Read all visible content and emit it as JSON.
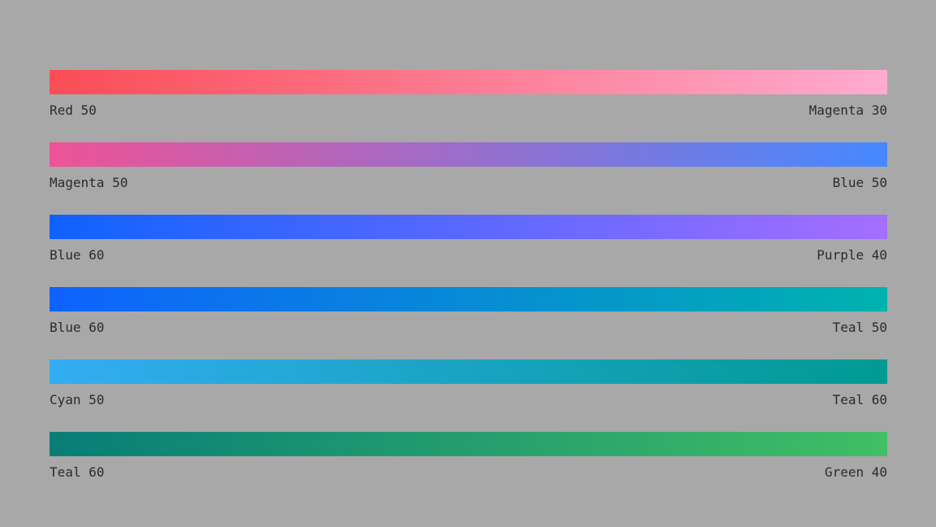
{
  "page": {
    "background_color": "#a8a8a8",
    "label_text_color": "#2b2b2b"
  },
  "gradients": [
    {
      "start_label": "Red 50",
      "end_label": "Magenta 30",
      "start_color": "#fa4d56",
      "end_color": "#ffabd0"
    },
    {
      "start_label": "Magenta 50",
      "end_label": "Blue 50",
      "start_color": "#ee5396",
      "end_color": "#4589ff"
    },
    {
      "start_label": "Blue 60",
      "end_label": "Purple 40",
      "start_color": "#0f62fe",
      "end_color": "#a56eff"
    },
    {
      "start_label": "Blue 60",
      "end_label": "Teal 50",
      "start_color": "#0f62fe",
      "end_color": "#00b3ae"
    },
    {
      "start_label": "Cyan 50",
      "end_label": "Teal 60",
      "start_color": "#33adf2",
      "end_color": "#009a92"
    },
    {
      "start_label": "Teal 60",
      "end_label": "Green 40",
      "start_color": "#087d77",
      "end_color": "#42be65"
    }
  ]
}
